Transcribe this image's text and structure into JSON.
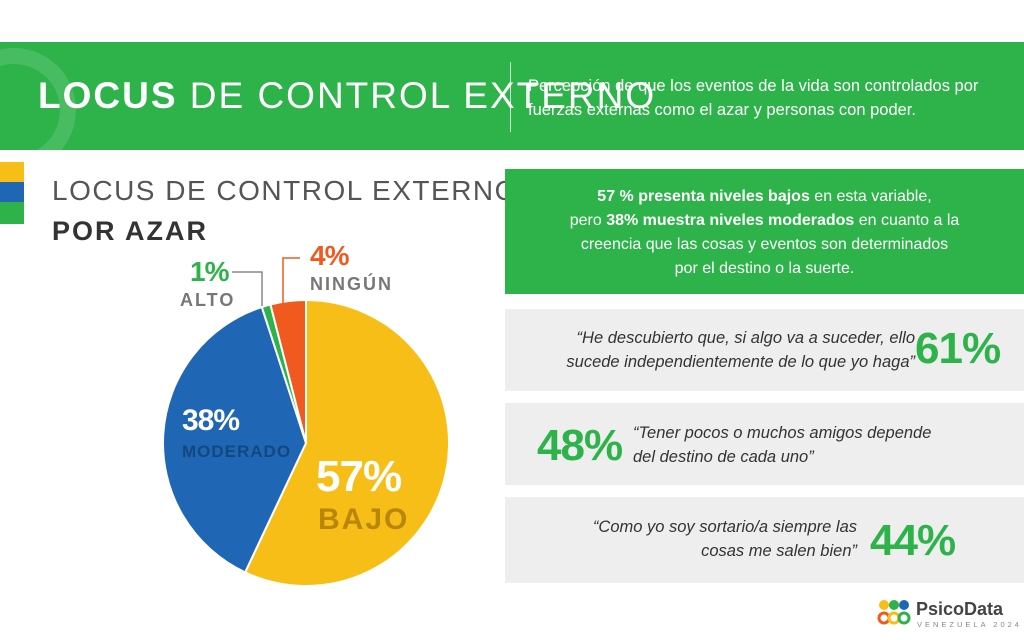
{
  "header": {
    "title_bold": "LOCUS",
    "title_rest": "DE CONTROL EXTERNO",
    "description": "Percepción de que los eventos de la vida son controlados por fuerzas externas como el azar y personas con poder."
  },
  "chart_data": {
    "type": "pie",
    "title": "LOCUS DE CONTROL EXTERNO",
    "subtitle": "POR AZAR",
    "slices": [
      {
        "label": "BAJO",
        "value": 57,
        "pct_label": "57%",
        "color": "#f6be16"
      },
      {
        "label": "MODERADO",
        "value": 38,
        "pct_label": "38%",
        "color": "#1f67b5"
      },
      {
        "label": "ALTO",
        "value": 1,
        "pct_label": "1%",
        "color": "#2db34a"
      },
      {
        "label": "NINGÚN",
        "value": 4,
        "pct_label": "4%",
        "color": "#f05a1e"
      }
    ]
  },
  "summary": {
    "part1_bold": "57 % presenta niveles bajos",
    "part2": " en esta variable,",
    "part3": "pero ",
    "part4_bold": "38% muestra niveles moderados",
    "part5": " en cuanto a la",
    "part6": "creencia que las cosas y eventos son determinados",
    "part7": "por el destino o la suerte."
  },
  "statements": [
    {
      "quote_line1": "“He descubierto que, si algo va a suceder, ello",
      "quote_line2": "sucede independientemente de lo que yo haga”",
      "pct": "61%"
    },
    {
      "quote_line1": "“Tener pocos o muchos amigos depende",
      "quote_line2": "del destino de cada uno”",
      "pct": "48%"
    },
    {
      "quote_line1": "“Como yo soy sortario/a siempre las",
      "quote_line2": "cosas me salen bien”",
      "pct": "44%"
    }
  ],
  "brand": {
    "name": "PsicoData",
    "subtitle": "VENEZUELA 2024",
    "icon": "people-circles-logo-icon"
  },
  "colors": {
    "accent_green": "#2db34a",
    "yellow": "#f6be16",
    "blue": "#1f67b5",
    "orange": "#f05a1e",
    "card_gray": "#eeeeee"
  }
}
